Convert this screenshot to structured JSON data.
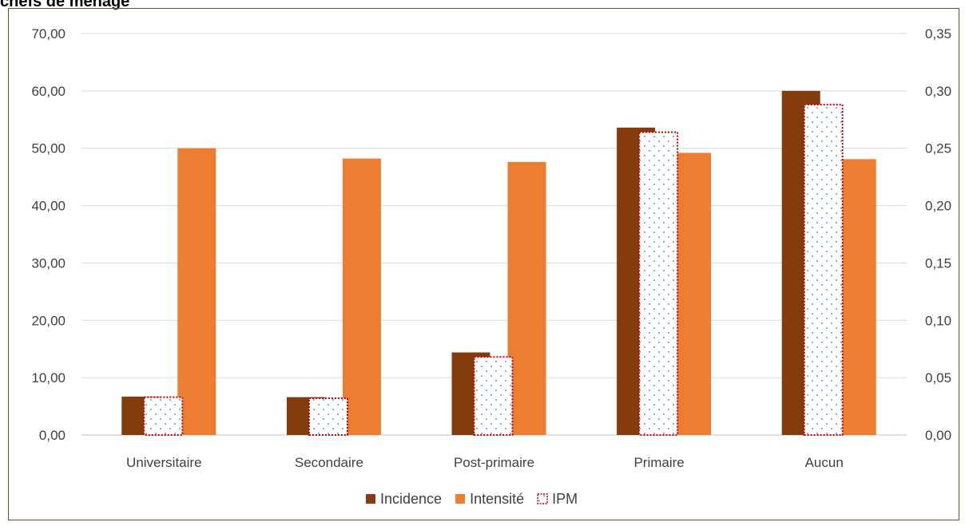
{
  "chart_data": {
    "type": "bar",
    "title": "chefs de ménage",
    "categories": [
      "Universitaire",
      "Secondaire",
      "Post-primaire",
      "Primaire",
      "Aucun"
    ],
    "left_axis": {
      "min": 0,
      "max": 70,
      "ticks": [
        "0,00",
        "10,00",
        "20,00",
        "30,00",
        "40,00",
        "50,00",
        "60,00",
        "70,00"
      ]
    },
    "right_axis": {
      "min": 0,
      "max": 0.35,
      "ticks": [
        "0,00",
        "0,05",
        "0,10",
        "0,15",
        "0,20",
        "0,25",
        "0,30",
        "0,35"
      ]
    },
    "series": [
      {
        "name": "Incidence",
        "axis": "left",
        "color": "#843c0c",
        "values": [
          6.7,
          6.6,
          14.4,
          53.6,
          60.0
        ]
      },
      {
        "name": "IPM",
        "axis": "right",
        "color": "#c00000",
        "pattern": "dotted-fill",
        "values": [
          0.033,
          0.032,
          0.068,
          0.264,
          0.288
        ]
      },
      {
        "name": "Intensité",
        "axis": "left",
        "color": "#ed7d31",
        "values": [
          50.0,
          48.2,
          47.6,
          49.2,
          48.1
        ]
      }
    ],
    "legend": [
      {
        "name": "Incidence",
        "color": "#843c0c",
        "style": "solid"
      },
      {
        "name": "Intensité",
        "color": "#ed7d31",
        "style": "solid"
      },
      {
        "name": "IPM",
        "color": "#c00000",
        "style": "dotted"
      }
    ],
    "grid": true,
    "legend_position": "bottom"
  }
}
